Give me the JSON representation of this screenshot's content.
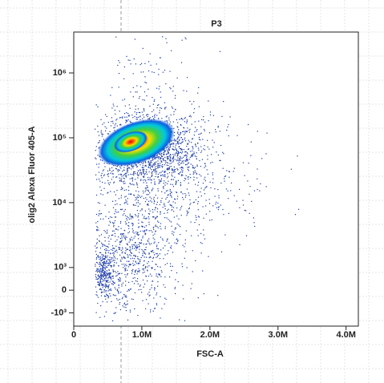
{
  "chart_data": {
    "type": "density",
    "title": "P3",
    "x_label": "FSC-A",
    "y_label": "olig2 Alexa Fluor 405-A",
    "y_scale": "biexponential",
    "xlim": [
      0,
      4180000
    ],
    "xticks": [
      0,
      {
        "value": 1000000,
        "label": "1.0M"
      },
      {
        "value": 2000000,
        "label": "2.0M"
      },
      {
        "value": 3000000,
        "label": "3.0M"
      },
      {
        "value": 4000000,
        "label": "4.0M"
      }
    ],
    "ylim": [
      -1600,
      4270000
    ],
    "yticks": [
      {
        "value": -1000,
        "label": "-10³"
      },
      0,
      {
        "value": 1000,
        "label": "10³"
      },
      {
        "value": 10000,
        "label": "10⁴"
      },
      {
        "value": 100000,
        "label": "10⁵"
      },
      {
        "value": 1000000,
        "label": "10⁶"
      }
    ]
  }
}
